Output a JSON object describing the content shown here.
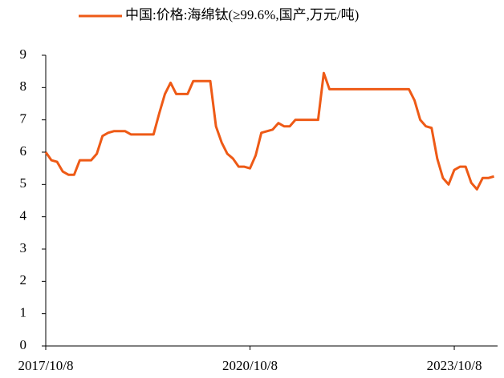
{
  "chart_data": {
    "type": "line",
    "categories": [
      "2017/10/8",
      null,
      null,
      null,
      null,
      null,
      null,
      null,
      null,
      null,
      null,
      null,
      null,
      null,
      null,
      null,
      null,
      null,
      null,
      null,
      null,
      null,
      null,
      null,
      null,
      null,
      null,
      null,
      null,
      null,
      null,
      null,
      null,
      null,
      null,
      null,
      "2020/10/8",
      null,
      null,
      null,
      null,
      null,
      null,
      null,
      null,
      null,
      null,
      null,
      null,
      null,
      null,
      null,
      null,
      null,
      null,
      null,
      null,
      null,
      null,
      null,
      null,
      null,
      null,
      null,
      null,
      null,
      null,
      null,
      null,
      null,
      null,
      null,
      "2023/10/8",
      null,
      null,
      null,
      null,
      null,
      null,
      null
    ],
    "series": [
      {
        "name": "中国:价格:海绵钛(≥99.6%,国产,万元/吨)",
        "color": "#ee5a16",
        "values": [
          6.0,
          5.75,
          5.7,
          5.4,
          5.3,
          5.3,
          5.75,
          5.75,
          5.75,
          5.95,
          6.5,
          6.6,
          6.65,
          6.65,
          6.65,
          6.55,
          6.55,
          6.55,
          6.55,
          6.55,
          7.2,
          7.8,
          8.15,
          7.8,
          7.8,
          7.8,
          8.2,
          8.2,
          8.2,
          8.2,
          6.8,
          6.3,
          5.95,
          5.8,
          5.55,
          5.55,
          5.5,
          5.9,
          6.6,
          6.65,
          6.7,
          6.9,
          6.8,
          6.8,
          7.0,
          7.0,
          7.0,
          7.0,
          7.0,
          8.45,
          7.95,
          7.95,
          7.95,
          7.95,
          7.95,
          7.95,
          7.95,
          7.95,
          7.95,
          7.95,
          7.95,
          7.95,
          7.95,
          7.95,
          7.95,
          7.6,
          7.0,
          6.8,
          6.75,
          5.8,
          5.2,
          5.0,
          5.45,
          5.55,
          5.55,
          5.05,
          4.85,
          5.2,
          5.2,
          5.25
        ]
      }
    ],
    "ylim": [
      0,
      9
    ],
    "yticks": [
      0,
      1,
      2,
      3,
      4,
      5,
      6,
      7,
      8,
      9
    ],
    "legend": "top"
  }
}
